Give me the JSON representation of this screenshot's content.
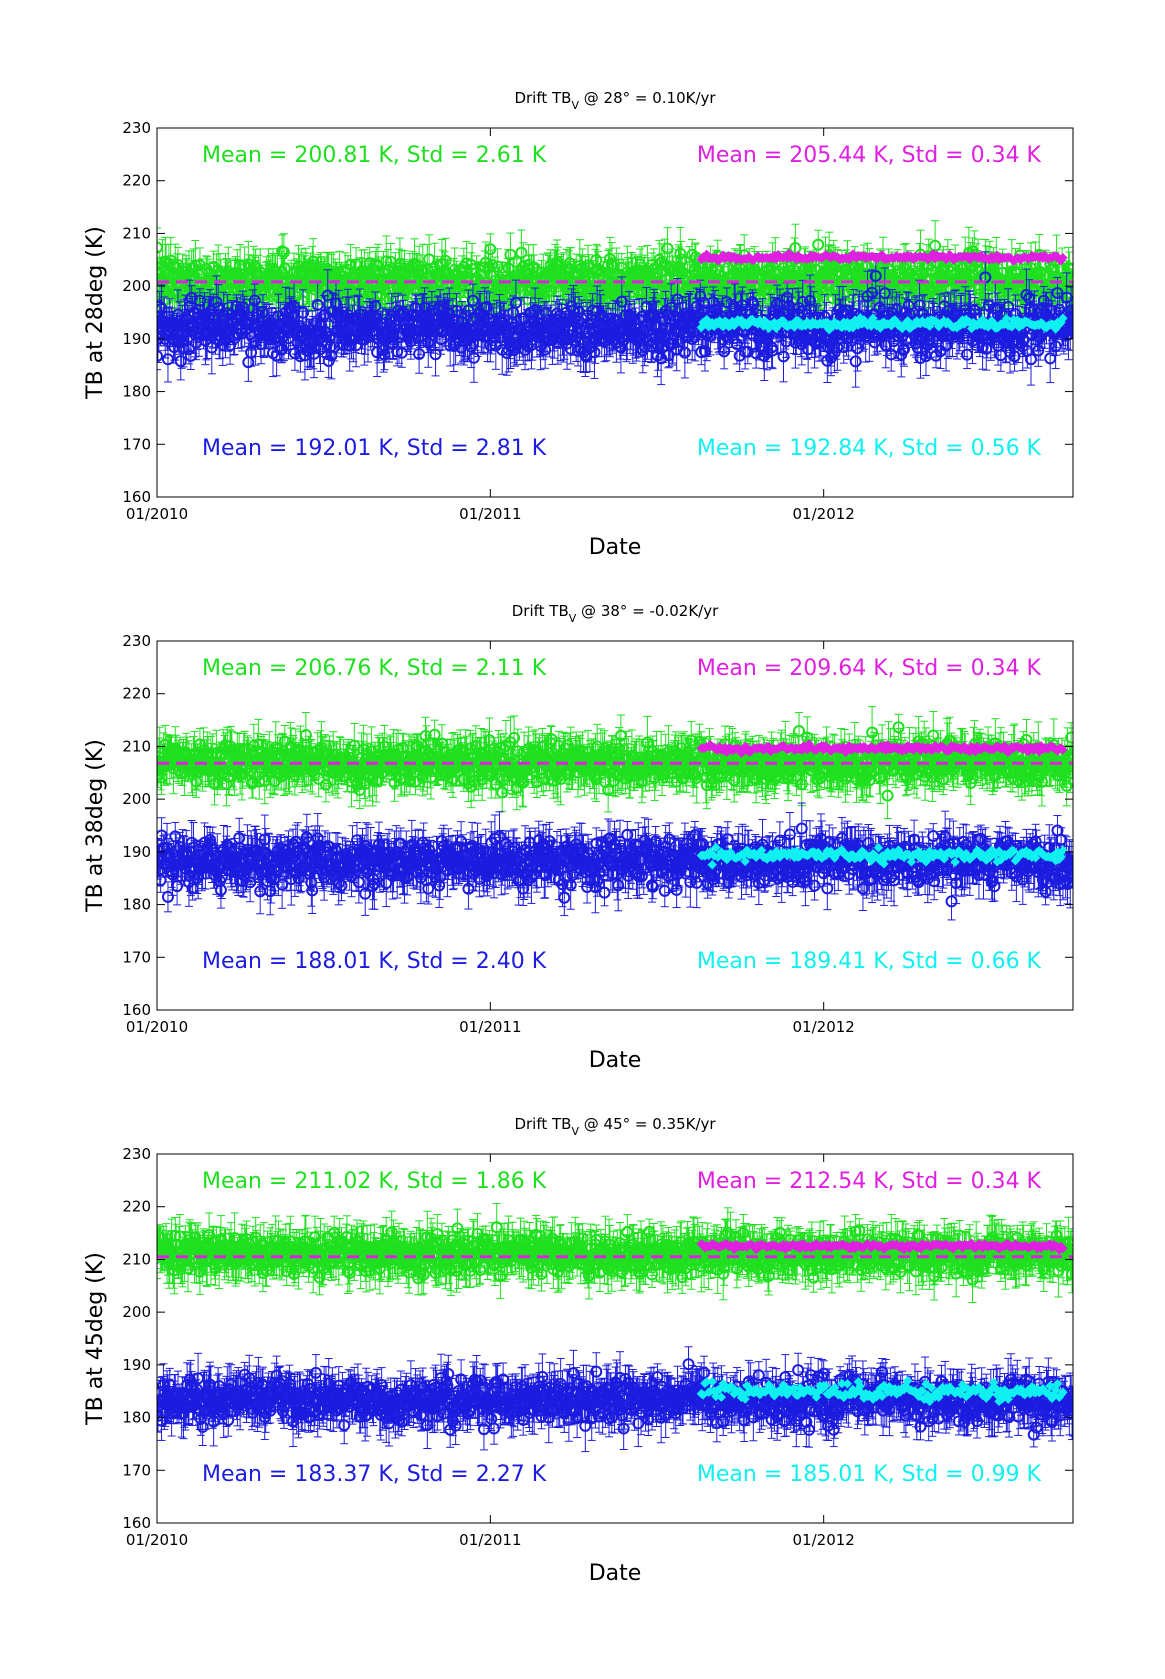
{
  "chart_data": [
    {
      "type": "scatter",
      "title": {
        "prefix": "Drift TB",
        "subscript": "V",
        "suffix": " @ 28° = 0.10K/yr"
      },
      "xlabel": "Date",
      "ylabel": "TB at 28deg (K)",
      "xlim": [
        "2010-01-01",
        "2012-09-30"
      ],
      "ylim": [
        160,
        230
      ],
      "yticks": [
        160,
        170,
        180,
        190,
        200,
        210,
        220,
        230
      ],
      "xticks": [
        {
          "date": "2010-01-01",
          "label": "01/2010"
        },
        {
          "date": "2011-01-01",
          "label": "01/2011"
        },
        {
          "date": "2012-01-01",
          "label": "01/2012"
        }
      ],
      "grid": false,
      "mean_line": {
        "value": 200.8,
        "color": "#e020e0",
        "style": "dashed"
      },
      "annotations": [
        {
          "text": "Mean = 200.81 K, Std = 2.61 K",
          "color": "#1fe01f",
          "position": "top-left"
        },
        {
          "text": "Mean = 205.44 K, Std = 0.34 K",
          "color": "#e020e0",
          "position": "top-right"
        },
        {
          "text": "Mean = 192.01 K, Std = 2.81 K",
          "color": "#1c1ce0",
          "position": "bottom-left"
        },
        {
          "text": "Mean = 192.84 K, Std = 0.56 K",
          "color": "#10f0f0",
          "position": "bottom-right"
        }
      ],
      "series": [
        {
          "color": "#1fe01f",
          "marker": "circle",
          "error_bars": true,
          "x_range": [
            "2010-01-01",
            "2012-09-30"
          ],
          "mean": 200.81,
          "std": 2.61
        },
        {
          "color": "#1c1ce0",
          "marker": "circle",
          "error_bars": true,
          "x_range": [
            "2010-01-01",
            "2012-09-30"
          ],
          "mean": 192.01,
          "std": 2.81
        },
        {
          "color": "#e020e0",
          "marker": "diamond",
          "error_bars": false,
          "x_range": [
            "2011-08-20",
            "2012-09-20"
          ],
          "mean": 205.44,
          "std": 0.34
        },
        {
          "color": "#10f0f0",
          "marker": "diamond",
          "error_bars": false,
          "x_range": [
            "2011-08-20",
            "2012-09-20"
          ],
          "mean": 192.84,
          "std": 0.56
        }
      ]
    },
    {
      "type": "scatter",
      "title": {
        "prefix": "Drift TB",
        "subscript": "V",
        "suffix": " @ 38° = -0.02K/yr"
      },
      "xlabel": "Date",
      "ylabel": "TB at 38deg (K)",
      "xlim": [
        "2010-01-01",
        "2012-09-30"
      ],
      "ylim": [
        160,
        230
      ],
      "yticks": [
        160,
        170,
        180,
        190,
        200,
        210,
        220,
        230
      ],
      "xticks": [
        {
          "date": "2010-01-01",
          "label": "01/2010"
        },
        {
          "date": "2011-01-01",
          "label": "01/2011"
        },
        {
          "date": "2012-01-01",
          "label": "01/2012"
        }
      ],
      "grid": false,
      "mean_line": {
        "value": 206.8,
        "color": "#e020e0",
        "style": "dashed"
      },
      "annotations": [
        {
          "text": "Mean = 206.76 K, Std = 2.11 K",
          "color": "#1fe01f",
          "position": "top-left"
        },
        {
          "text": "Mean = 209.64 K, Std = 0.34 K",
          "color": "#e020e0",
          "position": "top-right"
        },
        {
          "text": "Mean = 188.01 K, Std = 2.40 K",
          "color": "#1c1ce0",
          "position": "bottom-left"
        },
        {
          "text": "Mean = 189.41 K, Std = 0.66 K",
          "color": "#10f0f0",
          "position": "bottom-right"
        }
      ],
      "series": [
        {
          "color": "#1fe01f",
          "marker": "circle",
          "error_bars": true,
          "x_range": [
            "2010-01-01",
            "2012-09-30"
          ],
          "mean": 206.76,
          "std": 2.11
        },
        {
          "color": "#1c1ce0",
          "marker": "circle",
          "error_bars": true,
          "x_range": [
            "2010-01-01",
            "2012-09-30"
          ],
          "mean": 188.01,
          "std": 2.4
        },
        {
          "color": "#e020e0",
          "marker": "diamond",
          "error_bars": false,
          "x_range": [
            "2011-08-20",
            "2012-09-20"
          ],
          "mean": 209.64,
          "std": 0.34
        },
        {
          "color": "#10f0f0",
          "marker": "diamond",
          "error_bars": false,
          "x_range": [
            "2011-08-20",
            "2012-09-20"
          ],
          "mean": 189.41,
          "std": 0.66
        }
      ]
    },
    {
      "type": "scatter",
      "title": {
        "prefix": "Drift TB",
        "subscript": "V",
        "suffix": " @ 45° = 0.35K/yr"
      },
      "xlabel": "Date",
      "ylabel": "TB at 45deg (K)",
      "xlim": [
        "2010-01-01",
        "2012-09-30"
      ],
      "ylim": [
        160,
        230
      ],
      "yticks": [
        160,
        170,
        180,
        190,
        200,
        210,
        220,
        230
      ],
      "xticks": [
        {
          "date": "2010-01-01",
          "label": "01/2010"
        },
        {
          "date": "2011-01-01",
          "label": "01/2011"
        },
        {
          "date": "2012-01-01",
          "label": "01/2012"
        }
      ],
      "grid": false,
      "mean_line": {
        "value": 210.5,
        "color": "#e020e0",
        "style": "dashed"
      },
      "annotations": [
        {
          "text": "Mean = 211.02 K, Std = 1.86 K",
          "color": "#1fe01f",
          "position": "top-left"
        },
        {
          "text": "Mean = 212.54 K, Std = 0.34 K",
          "color": "#e020e0",
          "position": "top-right"
        },
        {
          "text": "Mean = 183.37 K, Std = 2.27 K",
          "color": "#1c1ce0",
          "position": "bottom-left"
        },
        {
          "text": "Mean = 185.01 K, Std = 0.99 K",
          "color": "#10f0f0",
          "position": "bottom-right"
        }
      ],
      "series": [
        {
          "color": "#1fe01f",
          "marker": "circle",
          "error_bars": true,
          "x_range": [
            "2010-01-01",
            "2012-09-30"
          ],
          "mean": 211.02,
          "std": 1.86
        },
        {
          "color": "#1c1ce0",
          "marker": "circle",
          "error_bars": true,
          "x_range": [
            "2010-01-01",
            "2012-09-30"
          ],
          "mean": 183.37,
          "std": 2.27
        },
        {
          "color": "#e020e0",
          "marker": "diamond",
          "error_bars": false,
          "x_range": [
            "2011-08-20",
            "2012-09-20"
          ],
          "mean": 212.54,
          "std": 0.34
        },
        {
          "color": "#10f0f0",
          "marker": "diamond",
          "error_bars": false,
          "x_range": [
            "2011-08-20",
            "2012-09-20"
          ],
          "mean": 185.01,
          "std": 0.99
        }
      ]
    }
  ]
}
